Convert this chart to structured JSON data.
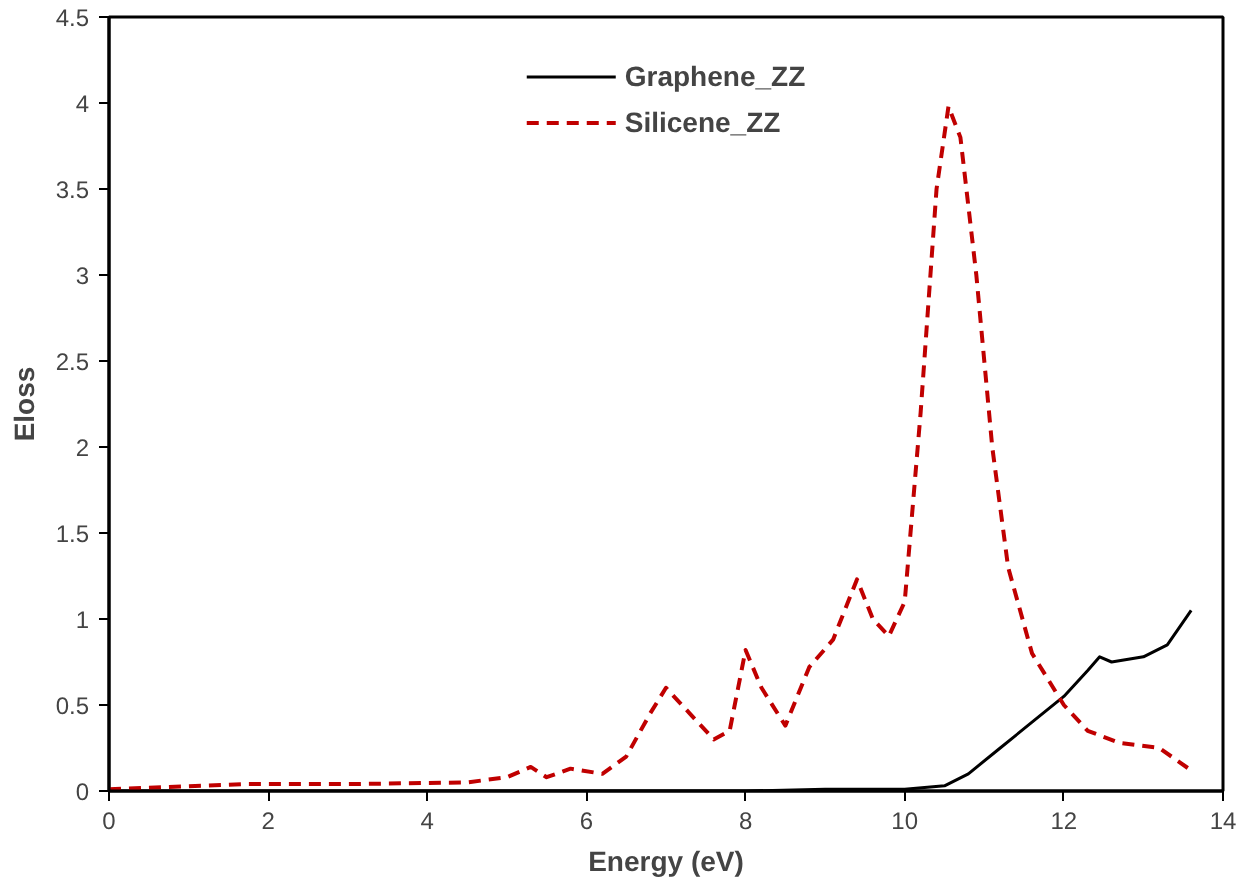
{
  "chart_data": {
    "type": "line",
    "xlabel": "Energy (eV)",
    "ylabel": "Eloss",
    "xlim": [
      0,
      14
    ],
    "ylim": [
      0,
      4.5
    ],
    "xticks": [
      0,
      2,
      4,
      6,
      8,
      10,
      12,
      14
    ],
    "yticks": [
      0,
      0.5,
      1,
      1.5,
      2,
      2.5,
      3,
      3.5,
      4,
      4.5
    ],
    "grid": false,
    "legend": "top",
    "series": [
      {
        "name": "Graphene_ZZ",
        "color": "#000000",
        "line_style": "solid",
        "x": [
          0,
          2,
          4,
          6,
          8,
          9,
          10,
          10.5,
          10.8,
          11.2,
          11.6,
          12.0,
          12.3,
          12.45,
          12.6,
          13.0,
          13.3,
          13.6
        ],
        "values": [
          0,
          0,
          0,
          0,
          0,
          0.01,
          0.01,
          0.03,
          0.1,
          0.25,
          0.4,
          0.55,
          0.7,
          0.78,
          0.75,
          0.78,
          0.85,
          1.05
        ]
      },
      {
        "name": "Silicene_ZZ",
        "color": "#c00000",
        "line_style": "dashed",
        "x": [
          0,
          1.7,
          3,
          4.5,
          5.0,
          5.3,
          5.5,
          5.8,
          6.2,
          6.5,
          6.8,
          7.0,
          7.3,
          7.6,
          7.8,
          8.0,
          8.2,
          8.5,
          8.8,
          9.1,
          9.4,
          9.6,
          9.8,
          10.0,
          10.2,
          10.4,
          10.55,
          10.7,
          10.9,
          11.1,
          11.3,
          11.6,
          12.0,
          12.3,
          12.7,
          13.2,
          13.6
        ],
        "values": [
          0.01,
          0.04,
          0.04,
          0.05,
          0.08,
          0.14,
          0.08,
          0.13,
          0.1,
          0.2,
          0.45,
          0.6,
          0.45,
          0.3,
          0.35,
          0.82,
          0.6,
          0.38,
          0.72,
          0.88,
          1.23,
          1.0,
          0.9,
          1.1,
          2.2,
          3.5,
          3.98,
          3.8,
          3.0,
          2.0,
          1.3,
          0.8,
          0.5,
          0.35,
          0.28,
          0.25,
          0.12
        ]
      }
    ]
  }
}
